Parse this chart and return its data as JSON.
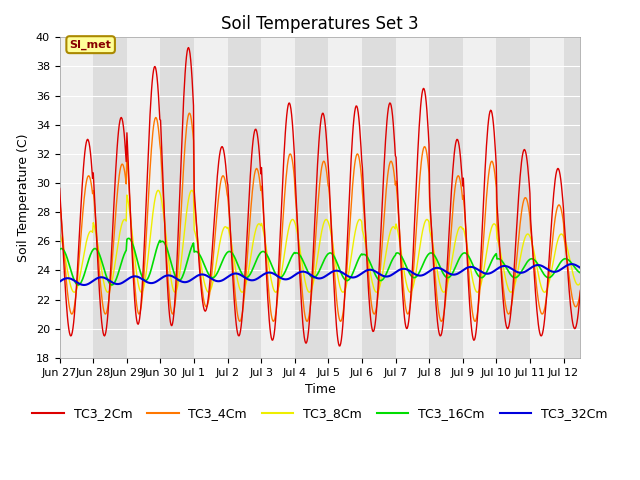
{
  "title": "Soil Temperatures Set 3",
  "xlabel": "Time",
  "ylabel": "Soil Temperature (C)",
  "ylim": [
    18,
    40
  ],
  "n_days": 15.5,
  "xtick_labels": [
    "Jun 27",
    "Jun 28",
    "Jun 29",
    "Jun 30",
    "Jul 1",
    "Jul 2",
    "Jul 3",
    "Jul 4",
    "Jul 5",
    "Jul 6",
    "Jul 7",
    "Jul 8",
    "Jul 9",
    "Jul 10",
    "Jul 11",
    "Jul 12"
  ],
  "series": {
    "TC3_2Cm": {
      "color": "#DD0000",
      "lw": 1.0
    },
    "TC3_4Cm": {
      "color": "#FF7700",
      "lw": 1.0
    },
    "TC3_8Cm": {
      "color": "#EEEE00",
      "lw": 1.0
    },
    "TC3_16Cm": {
      "color": "#00DD00",
      "lw": 1.2
    },
    "TC3_32Cm": {
      "color": "#0000DD",
      "lw": 1.5
    }
  },
  "bg_color": "#FFFFFF",
  "plot_bg": "#DDDDDD",
  "band_color": "#F0F0F0",
  "annotation_text": "SI_met",
  "annotation_bg": "#FFFF99",
  "annotation_border": "#AA8800",
  "title_fontsize": 12,
  "axis_fontsize": 9,
  "tick_fontsize": 8,
  "legend_fontsize": 9
}
